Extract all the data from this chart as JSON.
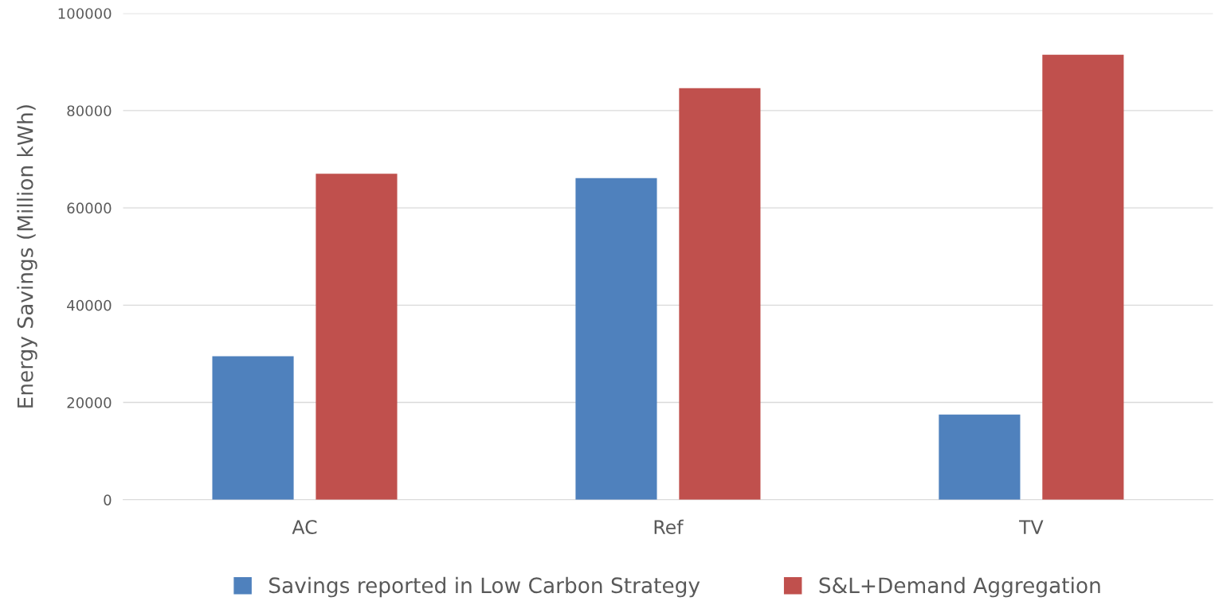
{
  "chart_data": {
    "type": "bar",
    "ylabel": "Energy Savings (Million kWh)",
    "categories": [
      "AC",
      "Ref",
      "TV"
    ],
    "series": [
      {
        "name": "Savings reported in Low Carbon Strategy",
        "color": "#4f81bd",
        "values": [
          29500,
          66100,
          17500
        ]
      },
      {
        "name": "S&L+Demand Aggregation",
        "color": "#c0504d",
        "values": [
          67000,
          84600,
          91500
        ]
      }
    ],
    "ylim": [
      0,
      100000
    ],
    "yticks": [
      0,
      20000,
      40000,
      60000,
      80000,
      100000
    ],
    "grid": "y",
    "legend": "bottom"
  }
}
